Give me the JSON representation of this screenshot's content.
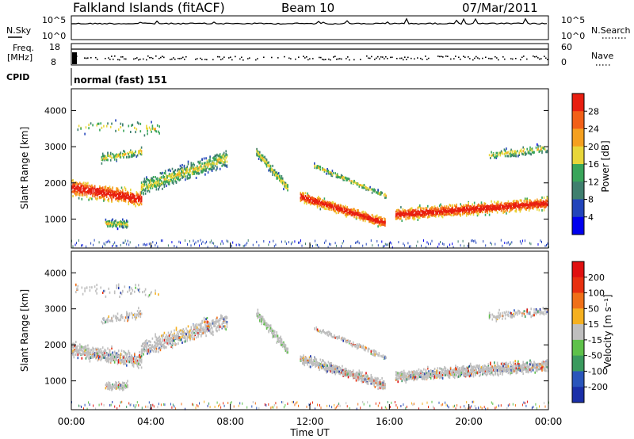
{
  "header": {
    "station": "Falkland Islands (fitACF)",
    "beam": "Beam 10",
    "date": "07/Mar/2011"
  },
  "top_panels": {
    "nsky_label": "N.Sky",
    "nsky_ticks": [
      "10^5",
      "10^0"
    ],
    "nsearch_label": "N.Search",
    "freq_label_1": "Freq.",
    "freq_label_2": "[MHz]",
    "freq_ticks": [
      "18",
      "8"
    ],
    "nave_label": "Nave",
    "nave_ticks": [
      "60",
      "0"
    ],
    "cpid_label": "CPID",
    "cpid_value": "normal (fast) 151"
  },
  "chart_data": [
    {
      "type": "heatmap",
      "name": "power",
      "ylabel": "Slant Range [km]",
      "yticks": [
        1000,
        2000,
        3000,
        4000
      ],
      "ylim": [
        200,
        4600
      ],
      "xlim_hours": [
        0,
        24
      ],
      "colorbar_label": "Power [dB]",
      "colorbar_ticks": [
        "28",
        "24",
        "20",
        "16",
        "12",
        "8",
        "4"
      ],
      "colorbar_colors": [
        "#0000ee",
        "#2244bb",
        "#3f7f6e",
        "#39a55a",
        "#e8d63a",
        "#f5a020",
        "#f26018",
        "#e81e10"
      ]
    },
    {
      "type": "heatmap",
      "name": "velocity",
      "ylabel": "Slant Range [km]",
      "yticks": [
        1000,
        2000,
        3000,
        4000
      ],
      "ylim": [
        200,
        4600
      ],
      "xlim_hours": [
        0,
        24
      ],
      "colorbar_label": "Velocity [m s⁻¹]",
      "colorbar_ticks": [
        "200",
        "100",
        "50",
        "15",
        "-15",
        "-50",
        "-100",
        "-200"
      ],
      "colorbar_colors": [
        "#1a2fa8",
        "#2a55bb",
        "#3a9a5e",
        "#5ec14a",
        "#bfbfbf",
        "#f5b020",
        "#f07018",
        "#e83010",
        "#e01010"
      ]
    }
  ],
  "xaxis": {
    "ticks": [
      "00:00",
      "04:00",
      "08:00",
      "12:00",
      "16:00",
      "20:00",
      "00:00"
    ],
    "label": "Time UT"
  }
}
